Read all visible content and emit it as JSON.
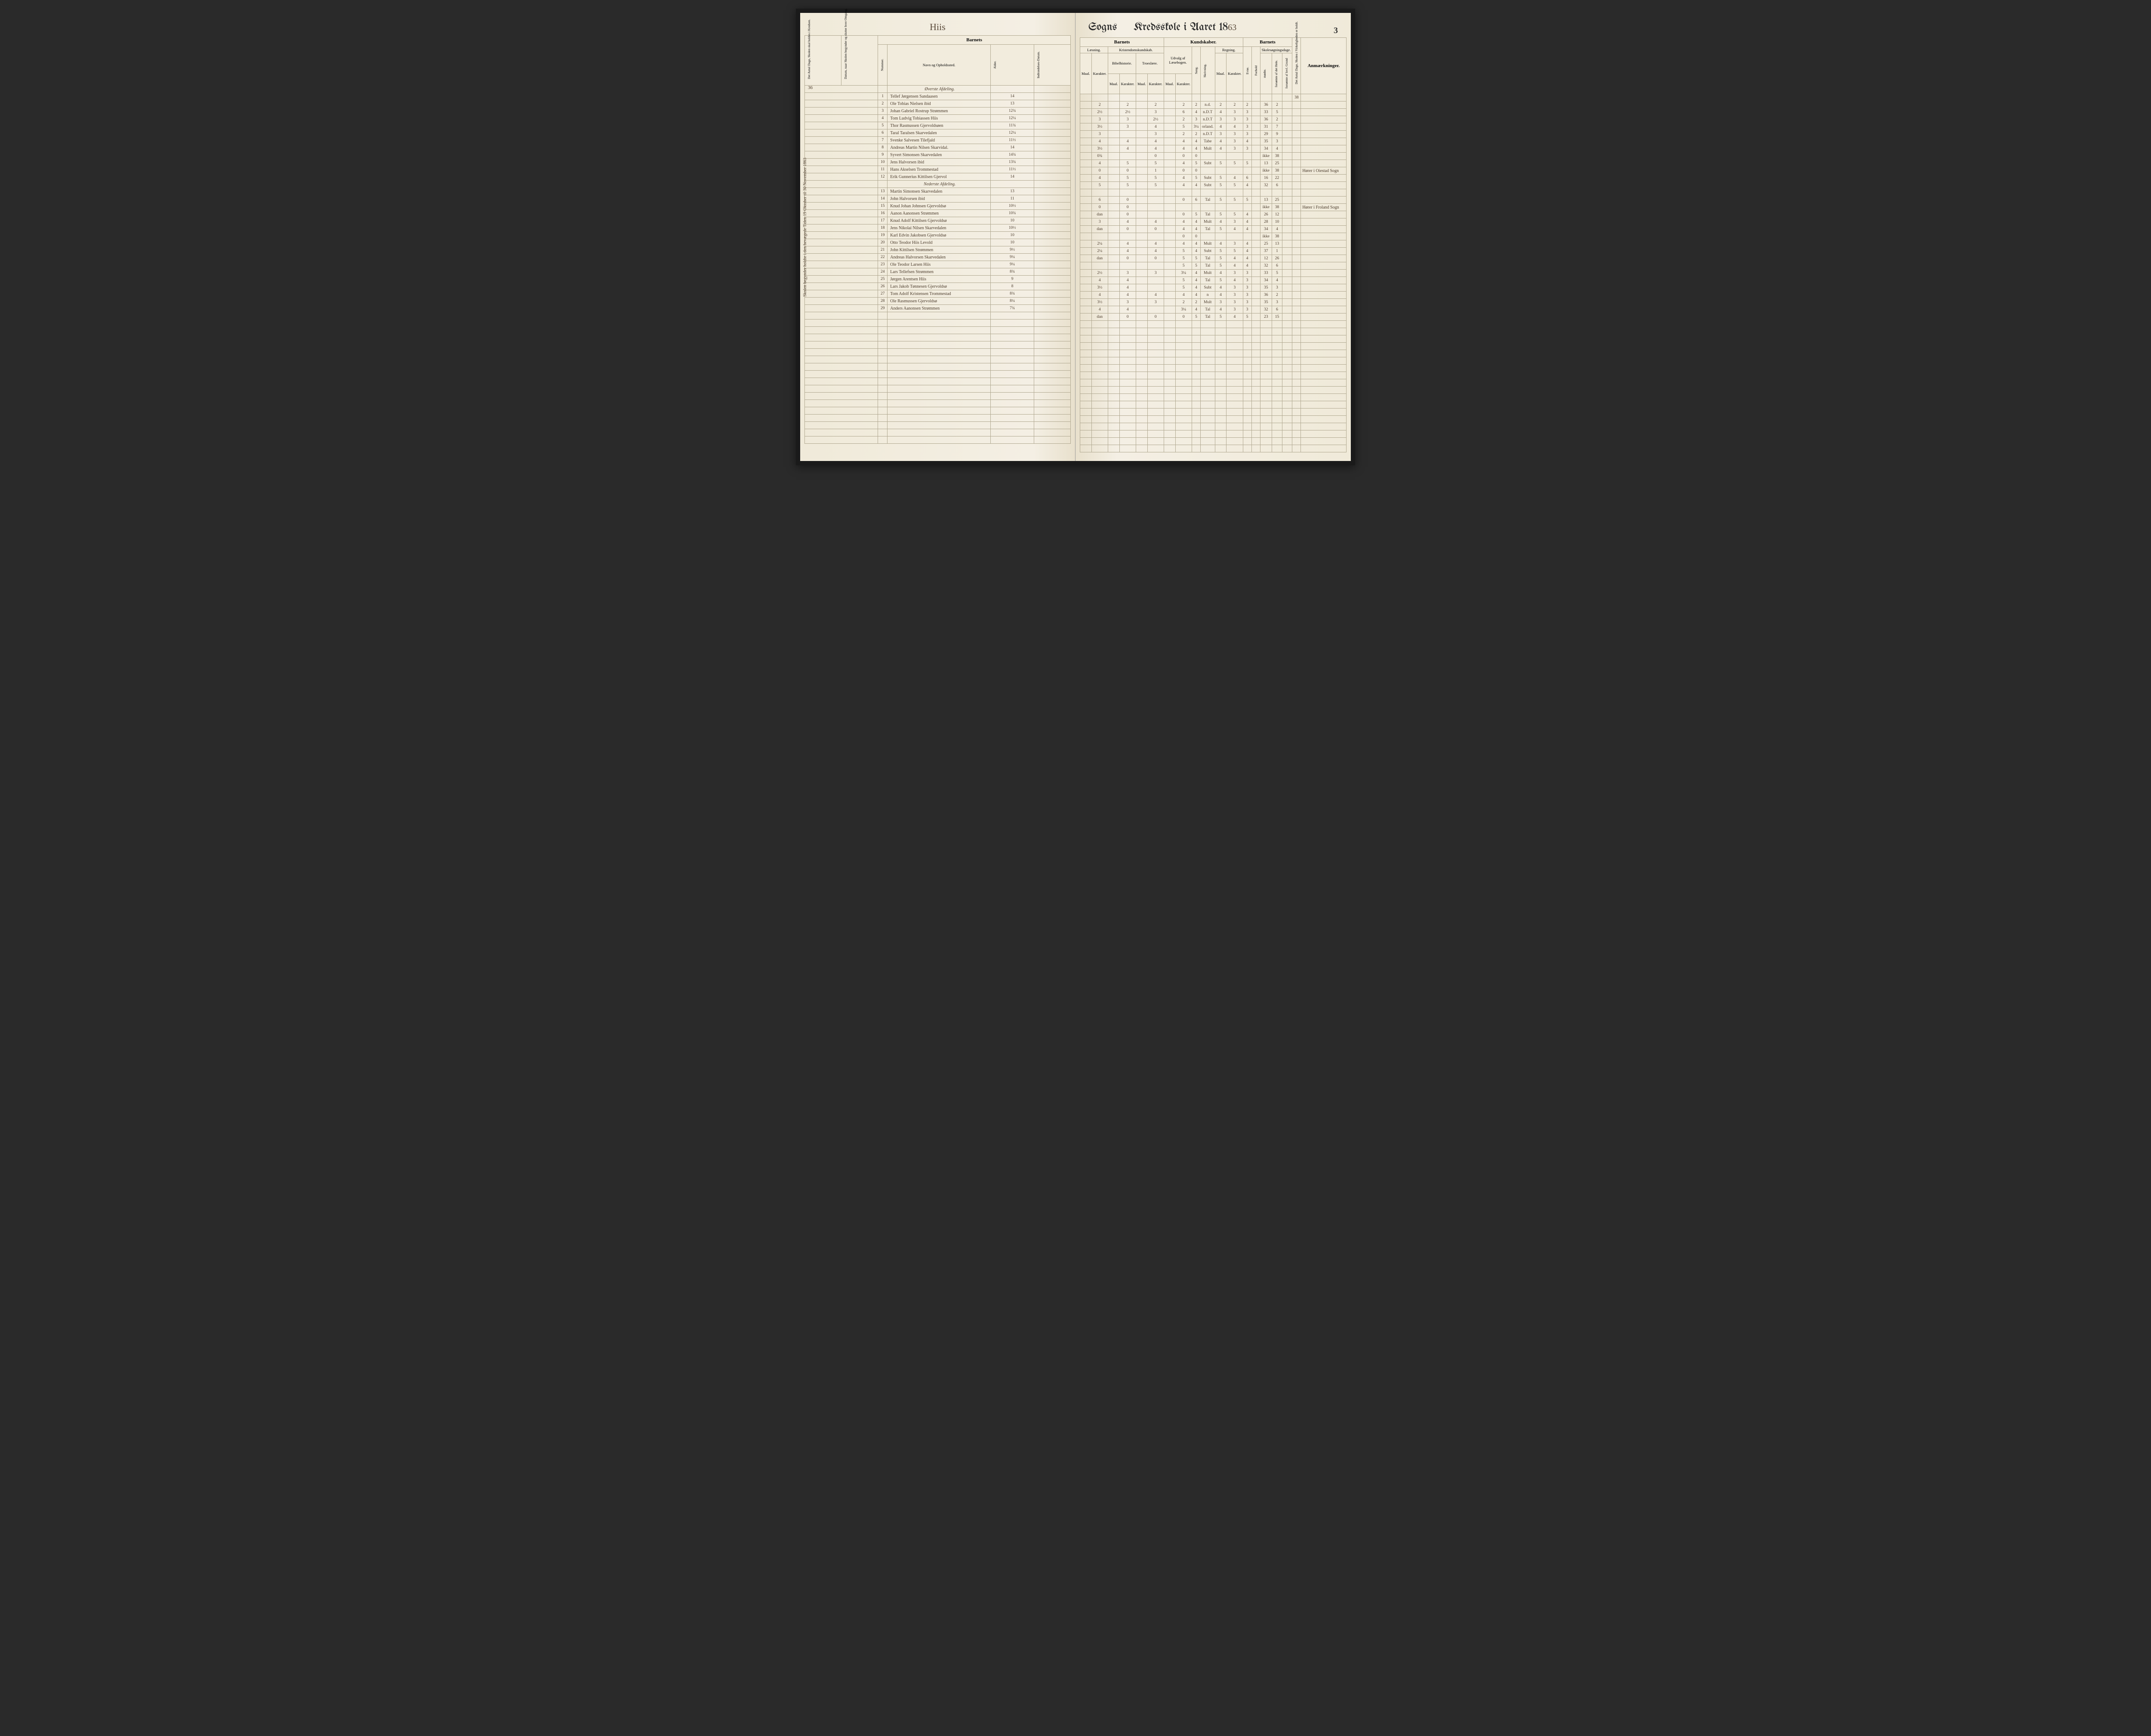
{
  "header": {
    "left_script": "Hiis",
    "right_title_prefix": "Sogns",
    "right_title_main": "Kredsskole i Aaret 18",
    "year_suffix": "63",
    "page_number": "3",
    "side_number": "36"
  },
  "left_groups": {
    "barnets": "Barnets",
    "col_antal_dage": "Det Antal Dage, Skolen skal holdes i Kredsen.",
    "col_datum": "Datum, naar Skolen begynder og slutter hver Omgang.",
    "col_nummer": "Nummer.",
    "col_navn": "Navn og Opholdssted.",
    "col_alder": "Alder.",
    "col_indtr": "Indtrædelses-Datum."
  },
  "right_groups": {
    "barnets1": "Barnets",
    "kundskaber": "Kundskaber.",
    "barnets2": "Barnets",
    "anm": "Anmærkninger.",
    "laesning": "Læsning.",
    "kristendom": "Kristendomskundskab.",
    "udvalg": "Udvalg af Læsebogen.",
    "sang": "Sang.",
    "skrivning": "Skrivning.",
    "regning": "Regning.",
    "skolesogn": "Skolesøgningsdage.",
    "bibel": "Bibelhistorie.",
    "troes": "Troeslære.",
    "maal": "Maal.",
    "karakter": "Karakter.",
    "evne": "Evne.",
    "forhold": "Forhold",
    "modte": "mødte.",
    "forsomte_hele": "forsømte af det Hele.",
    "forsomte_lovl": "forsømte af lovl. Grund",
    "antal_virk": "Det Antal Dage, Skolen i Virkeligheden er holdt."
  },
  "section1": "Øverste Afdeling.",
  "section2": "Nederste Afdeling.",
  "side_note": "Skolen begynder holdte i den bevægede Tiden 19 Oktober til 30 November 1863",
  "antal_virk_value": "38",
  "rows": [
    {
      "n": "1",
      "name": "Tellef Jørgensen Sandaasen",
      "age": "14",
      "l_m": "",
      "l_k": "2",
      "b_m": "",
      "b_k": "2",
      "t_m": "",
      "t_k": "2",
      "u_m": "",
      "u_k": "2",
      "sa": "2",
      "sk": "n.d.",
      "r_m": "2",
      "r_k": "2",
      "ev": "2",
      "fh": "",
      "mo": "36",
      "f1": "2",
      "f2": "",
      "anm": ""
    },
    {
      "n": "2",
      "name": "Ole Tobias Nielsen   ibid",
      "age": "13",
      "l_m": "",
      "l_k": "2½",
      "b_m": "",
      "b_k": "2½",
      "t_m": "",
      "t_k": "3",
      "u_m": "",
      "u_k": "6",
      "sa": "4",
      "sk": "n.D.T",
      "r_m": "4",
      "r_k": "3",
      "ev": "3",
      "fh": "",
      "mo": "33",
      "f1": "5",
      "f2": "",
      "anm": ""
    },
    {
      "n": "3",
      "name": "Johan Gabriel Rostrup Strømmen",
      "age": "12¾",
      "l_m": "",
      "l_k": "3",
      "b_m": "",
      "b_k": "3",
      "t_m": "",
      "t_k": "2½",
      "u_m": "",
      "u_k": "2",
      "sa": "3",
      "sk": "n.D.T",
      "r_m": "3",
      "r_k": "3",
      "ev": "3",
      "fh": "",
      "mo": "36",
      "f1": "2",
      "f2": "",
      "anm": ""
    },
    {
      "n": "4",
      "name": "Tom Ludvig Tobiassen Hiis",
      "age": "12¼",
      "l_m": "",
      "l_k": "3½",
      "b_m": "",
      "b_k": "3",
      "t_m": "",
      "t_k": "4",
      "u_m": "",
      "u_k": "5",
      "sa": "3¼",
      "sk": "orland.",
      "r_m": "4",
      "r_k": "4",
      "ev": "3",
      "fh": "",
      "mo": "31",
      "f1": "7",
      "f2": "",
      "anm": ""
    },
    {
      "n": "5",
      "name": "Thor Rasmussen Gjervoldsøen",
      "age": "11¾",
      "l_m": "",
      "l_k": "3",
      "b_m": "",
      "b_k": "",
      "t_m": "",
      "t_k": "3",
      "u_m": "",
      "u_k": "2",
      "sa": "2",
      "sk": "n.D.T",
      "r_m": "3",
      "r_k": "3",
      "ev": "3",
      "fh": "",
      "mo": "29",
      "f1": "9",
      "f2": "",
      "anm": ""
    },
    {
      "n": "6",
      "name": "Taral Taralsen Skarvedalen",
      "age": "12¼",
      "l_m": "",
      "l_k": "4",
      "b_m": "",
      "b_k": "4",
      "t_m": "",
      "t_k": "4",
      "u_m": "",
      "u_k": "4",
      "sa": "4",
      "sk": "Tabe",
      "r_m": "4",
      "r_k": "3",
      "ev": "4",
      "fh": "",
      "mo": "35",
      "f1": "3",
      "f2": "",
      "anm": ""
    },
    {
      "n": "7",
      "name": "Svenke Salvesen Tilefjald",
      "age": "11½",
      "l_m": "",
      "l_k": "3½",
      "b_m": "",
      "b_k": "4",
      "t_m": "",
      "t_k": "4",
      "u_m": "",
      "u_k": "4",
      "sa": "4",
      "sk": "Mult",
      "r_m": "4",
      "r_k": "3",
      "ev": "3",
      "fh": "",
      "mo": "34",
      "f1": "4",
      "f2": "",
      "anm": ""
    },
    {
      "n": "8",
      "name": "Andreas Martin Nilsen Skarvidal.",
      "age": "14",
      "l_m": "",
      "l_k": "0¾",
      "b_m": "",
      "b_k": "",
      "t_m": "",
      "t_k": "0",
      "u_m": "",
      "u_k": "0",
      "sa": "0",
      "sk": "",
      "r_m": "",
      "r_k": "",
      "ev": "",
      "fh": "",
      "mo": "ikke",
      "f1": "38",
      "f2": "",
      "anm": ""
    },
    {
      "n": "9",
      "name": "Syvert Simonsen Skarvedalen",
      "age": "14¾",
      "l_m": "",
      "l_k": "4",
      "b_m": "",
      "b_k": "5",
      "t_m": "",
      "t_k": "5",
      "u_m": "",
      "u_k": "4",
      "sa": "5",
      "sk": "Subt",
      "r_m": "5",
      "r_k": "5",
      "ev": "5",
      "fh": "",
      "mo": "13",
      "f1": "25",
      "f2": "",
      "anm": ""
    },
    {
      "n": "10",
      "name": "Jens Halvorsen   ibid",
      "age": "13¾",
      "l_m": "",
      "l_k": "0",
      "b_m": "",
      "b_k": "0",
      "t_m": "",
      "t_k": "1",
      "u_m": "",
      "u_k": "0",
      "sa": "0",
      "sk": "",
      "r_m": "",
      "r_k": "",
      "ev": "",
      "fh": "",
      "mo": "ikke",
      "f1": "38",
      "f2": "",
      "anm": "Hører i Oiestad Sogn"
    },
    {
      "n": "11",
      "name": "Hans Akselsen Trommestad",
      "age": "11½",
      "l_m": "",
      "l_k": "4",
      "b_m": "",
      "b_k": "5",
      "t_m": "",
      "t_k": "5",
      "u_m": "",
      "u_k": "4",
      "sa": "5",
      "sk": "Subt",
      "r_m": "5",
      "r_k": "4",
      "ev": "6",
      "fh": "",
      "mo": "16",
      "f1": "22",
      "f2": "",
      "anm": ""
    },
    {
      "n": "12",
      "name": "Erik Gunnerius Kittilsen Gjervol",
      "age": "14",
      "l_m": "",
      "l_k": "5",
      "b_m": "",
      "b_k": "5",
      "t_m": "",
      "t_k": "5",
      "u_m": "",
      "u_k": "4",
      "sa": "4",
      "sk": "Subt",
      "r_m": "5",
      "r_k": "5",
      "ev": "4",
      "fh": "",
      "mo": "32",
      "f1": "6",
      "f2": "",
      "anm": ""
    },
    {
      "n": "13",
      "name": "Martin Simonsen Skarvedalen",
      "age": "13",
      "l_m": "",
      "l_k": "6",
      "b_m": "",
      "b_k": "0",
      "t_m": "",
      "t_k": "",
      "u_m": "",
      "u_k": "0",
      "sa": "6",
      "sk": "Tal",
      "r_m": "5",
      "r_k": "5",
      "ev": "5",
      "fh": "",
      "mo": "13",
      "f1": "25",
      "f2": "",
      "anm": ""
    },
    {
      "n": "14",
      "name": "John Halvorsen   ibid",
      "age": "11",
      "l_m": "",
      "l_k": "0",
      "b_m": "",
      "b_k": "0",
      "t_m": "",
      "t_k": "",
      "u_m": "",
      "u_k": "",
      "sa": "",
      "sk": "",
      "r_m": "",
      "r_k": "",
      "ev": "",
      "fh": "",
      "mo": "ikke",
      "f1": "38",
      "f2": "",
      "anm": "Hører i Froland Sogn"
    },
    {
      "n": "15",
      "name": "Knud Johan Johnsen Gjervoldsø",
      "age": "10½",
      "l_m": "",
      "l_k": "dan",
      "b_m": "",
      "b_k": "0",
      "t_m": "",
      "t_k": "",
      "u_m": "",
      "u_k": "0",
      "sa": "5",
      "sk": "Tal",
      "r_m": "5",
      "r_k": "5",
      "ev": "4",
      "fh": "",
      "mo": "26",
      "f1": "12",
      "f2": "",
      "anm": ""
    },
    {
      "n": "16",
      "name": "Aanon Aanonsen Strømmen",
      "age": "10¾",
      "l_m": "",
      "l_k": "3",
      "b_m": "",
      "b_k": "4",
      "t_m": "",
      "t_k": "4",
      "u_m": "",
      "u_k": "4",
      "sa": "4",
      "sk": "Mult",
      "r_m": "4",
      "r_k": "3",
      "ev": "4",
      "fh": "",
      "mo": "28",
      "f1": "10",
      "f2": "",
      "anm": ""
    },
    {
      "n": "17",
      "name": "Knud Adolf Kittilsen Gjervoldsø",
      "age": "10",
      "l_m": "",
      "l_k": "dan",
      "b_m": "",
      "b_k": "0",
      "t_m": "",
      "t_k": "0",
      "u_m": "",
      "u_k": "4",
      "sa": "4",
      "sk": "Tal",
      "r_m": "5",
      "r_k": "4",
      "ev": "4",
      "fh": "",
      "mo": "34",
      "f1": "4",
      "f2": "",
      "anm": ""
    },
    {
      "n": "18",
      "name": "Jens Nikolai Nilsen Skarvedalen",
      "age": "10½",
      "l_m": "",
      "l_k": "",
      "b_m": "",
      "b_k": "",
      "t_m": "",
      "t_k": "",
      "u_m": "",
      "u_k": "0",
      "sa": "0",
      "sk": "",
      "r_m": "",
      "r_k": "",
      "ev": "",
      "fh": "",
      "mo": "ikke",
      "f1": "38",
      "f2": "",
      "anm": ""
    },
    {
      "n": "19",
      "name": "Karl Edvin Jakobsen Gjervoldsø",
      "age": "10",
      "l_m": "",
      "l_k": "2¼",
      "b_m": "",
      "b_k": "4",
      "t_m": "",
      "t_k": "4",
      "u_m": "",
      "u_k": "4",
      "sa": "4",
      "sk": "Mult",
      "r_m": "4",
      "r_k": "3",
      "ev": "4",
      "fh": "",
      "mo": "25",
      "f1": "13",
      "f2": "",
      "anm": ""
    },
    {
      "n": "20",
      "name": "Otto Teodor Hiis   Levold",
      "age": "10",
      "l_m": "",
      "l_k": "2¼",
      "b_m": "",
      "b_k": "4",
      "t_m": "",
      "t_k": "4",
      "u_m": "",
      "u_k": "5",
      "sa": "4",
      "sk": "Subt",
      "r_m": "5",
      "r_k": "5",
      "ev": "4",
      "fh": "",
      "mo": "37",
      "f1": "1",
      "f2": "",
      "anm": ""
    },
    {
      "n": "21",
      "name": "John Kittilsen Strømmen",
      "age": "9½",
      "l_m": "",
      "l_k": "dan",
      "b_m": "",
      "b_k": "0",
      "t_m": "",
      "t_k": "0",
      "u_m": "",
      "u_k": "5",
      "sa": "5",
      "sk": "Tal",
      "r_m": "5",
      "r_k": "4",
      "ev": "4",
      "fh": "",
      "mo": "12",
      "f1": "26",
      "f2": "",
      "anm": ""
    },
    {
      "n": "22",
      "name": "Andreas Halvorsen Skarvedalen",
      "age": "9¼",
      "l_m": "",
      "l_k": "",
      "b_m": "",
      "b_k": "",
      "t_m": "",
      "t_k": "",
      "u_m": "",
      "u_k": "5",
      "sa": "5",
      "sk": "Tal",
      "r_m": "5",
      "r_k": "4",
      "ev": "4",
      "fh": "",
      "mo": "32",
      "f1": "6",
      "f2": "",
      "anm": ""
    },
    {
      "n": "23",
      "name": "Ole Teodor Larsen Hiis",
      "age": "9¼",
      "l_m": "",
      "l_k": "2½",
      "b_m": "",
      "b_k": "3",
      "t_m": "",
      "t_k": "3",
      "u_m": "",
      "u_k": "3¼",
      "sa": "4",
      "sk": "Mult",
      "r_m": "4",
      "r_k": "3",
      "ev": "3",
      "fh": "",
      "mo": "33",
      "f1": "5",
      "f2": "",
      "anm": ""
    },
    {
      "n": "24",
      "name": "Lars Tellefsen Strømmen",
      "age": "8¾",
      "l_m": "",
      "l_k": "4",
      "b_m": "",
      "b_k": "4",
      "t_m": "",
      "t_k": "",
      "u_m": "",
      "u_k": "5",
      "sa": "4",
      "sk": "Tal",
      "r_m": "5",
      "r_k": "4",
      "ev": "3",
      "fh": "",
      "mo": "34",
      "f1": "4",
      "f2": "",
      "anm": ""
    },
    {
      "n": "25",
      "name": "Jørgen Arentsen Hiis",
      "age": "9",
      "l_m": "",
      "l_k": "3½",
      "b_m": "",
      "b_k": "4",
      "t_m": "",
      "t_k": "",
      "u_m": "",
      "u_k": "5",
      "sa": "4",
      "sk": "Subt",
      "r_m": "4",
      "r_k": "3",
      "ev": "3",
      "fh": "",
      "mo": "35",
      "f1": "3",
      "f2": "",
      "anm": ""
    },
    {
      "n": "26",
      "name": "Lars Jakob Tønnesen Gjervoldsø",
      "age": "8",
      "l_m": "",
      "l_k": "4",
      "b_m": "",
      "b_k": "4",
      "t_m": "",
      "t_k": "4",
      "u_m": "",
      "u_k": "4",
      "sa": "4",
      "sk": "n",
      "r_m": "4",
      "r_k": "3",
      "ev": "3",
      "fh": "",
      "mo": "36",
      "f1": "2",
      "f2": "",
      "anm": ""
    },
    {
      "n": "27",
      "name": "Tom Adolf Kristensen Trommestad",
      "age": "8¾",
      "l_m": "",
      "l_k": "3½",
      "b_m": "",
      "b_k": "3",
      "t_m": "",
      "t_k": "3",
      "u_m": "",
      "u_k": "2",
      "sa": "2",
      "sk": "Mult",
      "r_m": "3",
      "r_k": "3",
      "ev": "3",
      "fh": "",
      "mo": "35",
      "f1": "3",
      "f2": "",
      "anm": ""
    },
    {
      "n": "28",
      "name": "Ole Rasmussen Gjervoldsø",
      "age": "8¼",
      "l_m": "",
      "l_k": "4",
      "b_m": "",
      "b_k": "4",
      "t_m": "",
      "t_k": "",
      "u_m": "",
      "u_k": "3¼",
      "sa": "4",
      "sk": "Tal",
      "r_m": "4",
      "r_k": "3",
      "ev": "3",
      "fh": "",
      "mo": "32",
      "f1": "6",
      "f2": "",
      "anm": ""
    },
    {
      "n": "29",
      "name": "Anders Aanonsen Strømmen",
      "age": "7¾",
      "l_m": "",
      "l_k": "dan",
      "b_m": "",
      "b_k": "0",
      "t_m": "",
      "t_k": "0",
      "u_m": "",
      "u_k": "0",
      "sa": "5",
      "sk": "Tal",
      "r_m": "5",
      "r_k": "4",
      "ev": "5",
      "fh": "",
      "mo": "23",
      "f1": "15",
      "f2": "",
      "anm": ""
    }
  ],
  "colors": {
    "paper": "#f4efe4",
    "ink": "#4a3a2a",
    "rule": "#b0a890",
    "print": "#2a2a2a"
  }
}
